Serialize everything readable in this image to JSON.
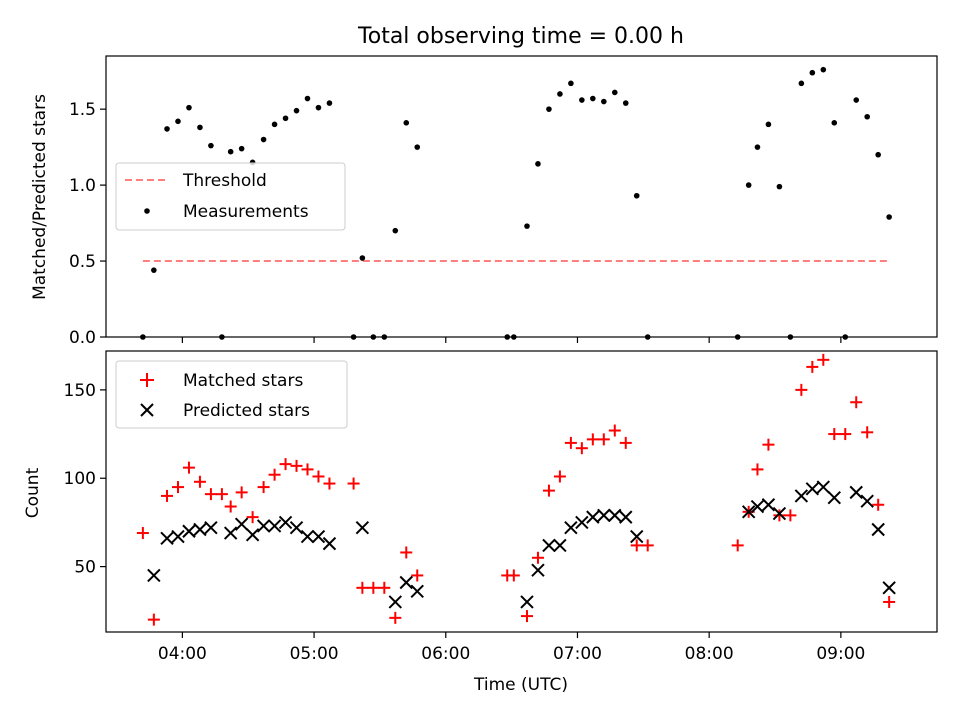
{
  "title": "Total observing time = 0.00 h",
  "chart_data": [
    {
      "type": "scatter",
      "ylabel": "Matched/Predicted stars",
      "xlim_hours": [
        3.42,
        9.73
      ],
      "ylim": [
        0,
        1.85
      ],
      "yticks": [
        0.0,
        0.5,
        1.0,
        1.5
      ],
      "yticklabels": [
        "0.0",
        "0.5",
        "1.0",
        "1.5"
      ],
      "xticks_hours": [
        4,
        5,
        6,
        7,
        8,
        9
      ],
      "legend_position": "center-left",
      "threshold": {
        "name": "Threshold",
        "y": 0.5,
        "x_range": [
          "03:42",
          "09:22"
        ],
        "color": "#ff7f7f",
        "style": "dashed"
      },
      "series": [
        {
          "name": "Measurements",
          "marker": "dot",
          "color": "#000000",
          "points": [
            [
              "03:42",
              0.0
            ],
            [
              "03:47",
              0.44
            ],
            [
              "03:53",
              1.37
            ],
            [
              "03:58",
              1.42
            ],
            [
              "04:03",
              1.51
            ],
            [
              "04:08",
              1.38
            ],
            [
              "04:13",
              1.26
            ],
            [
              "04:18",
              0.0
            ],
            [
              "04:22",
              1.22
            ],
            [
              "04:27",
              1.24
            ],
            [
              "04:32",
              1.15
            ],
            [
              "04:37",
              1.3
            ],
            [
              "04:42",
              1.4
            ],
            [
              "04:47",
              1.44
            ],
            [
              "04:52",
              1.49
            ],
            [
              "04:57",
              1.57
            ],
            [
              "05:02",
              1.51
            ],
            [
              "05:07",
              1.54
            ],
            [
              "05:18",
              0.0
            ],
            [
              "05:22",
              0.52
            ],
            [
              "05:27",
              0.0
            ],
            [
              "05:32",
              0.0
            ],
            [
              "05:37",
              0.7
            ],
            [
              "05:42",
              1.41
            ],
            [
              "05:47",
              1.25
            ],
            [
              "06:28",
              0.0
            ],
            [
              "06:31",
              0.0
            ],
            [
              "06:37",
              0.73
            ],
            [
              "06:42",
              1.14
            ],
            [
              "06:47",
              1.5
            ],
            [
              "06:52",
              1.6
            ],
            [
              "06:57",
              1.67
            ],
            [
              "07:02",
              1.56
            ],
            [
              "07:07",
              1.57
            ],
            [
              "07:12",
              1.55
            ],
            [
              "07:17",
              1.61
            ],
            [
              "07:22",
              1.54
            ],
            [
              "07:27",
              0.93
            ],
            [
              "07:32",
              0.0
            ],
            [
              "08:13",
              0.0
            ],
            [
              "08:18",
              1.0
            ],
            [
              "08:22",
              1.25
            ],
            [
              "08:27",
              1.4
            ],
            [
              "08:32",
              0.99
            ],
            [
              "08:37",
              0.0
            ],
            [
              "08:42",
              1.67
            ],
            [
              "08:47",
              1.74
            ],
            [
              "08:52",
              1.76
            ],
            [
              "08:57",
              1.41
            ],
            [
              "09:02",
              0.0
            ],
            [
              "09:07",
              1.56
            ],
            [
              "09:12",
              1.45
            ],
            [
              "09:17",
              1.2
            ],
            [
              "09:22",
              0.79
            ]
          ]
        }
      ]
    },
    {
      "type": "scatter",
      "xlabel": "Time (UTC)",
      "ylabel": "Count",
      "xlim_hours": [
        3.42,
        9.73
      ],
      "ylim": [
        13,
        172
      ],
      "yticks": [
        50,
        100,
        150
      ],
      "yticklabels": [
        "50",
        "100",
        "150"
      ],
      "xticks_hours": [
        4,
        5,
        6,
        7,
        8,
        9
      ],
      "xticklabels": [
        "04:00",
        "05:00",
        "06:00",
        "07:00",
        "08:00",
        "09:00"
      ],
      "legend_position": "top-left",
      "series": [
        {
          "name": "Matched stars",
          "marker": "plus",
          "color": "#ff0000",
          "points": [
            [
              "03:42",
              69
            ],
            [
              "03:47",
              20
            ],
            [
              "03:53",
              90
            ],
            [
              "03:58",
              95
            ],
            [
              "04:03",
              106
            ],
            [
              "04:08",
              98
            ],
            [
              "04:13",
              91
            ],
            [
              "04:18",
              91
            ],
            [
              "04:22",
              84
            ],
            [
              "04:27",
              92
            ],
            [
              "04:32",
              78
            ],
            [
              "04:37",
              95
            ],
            [
              "04:42",
              102
            ],
            [
              "04:47",
              108
            ],
            [
              "04:52",
              107
            ],
            [
              "04:57",
              105
            ],
            [
              "05:02",
              101
            ],
            [
              "05:07",
              97
            ],
            [
              "05:18",
              97
            ],
            [
              "05:22",
              38
            ],
            [
              "05:27",
              38
            ],
            [
              "05:32",
              38
            ],
            [
              "05:37",
              21
            ],
            [
              "05:42",
              58
            ],
            [
              "05:47",
              45
            ],
            [
              "06:28",
              45
            ],
            [
              "06:31",
              45
            ],
            [
              "06:37",
              22
            ],
            [
              "06:42",
              55
            ],
            [
              "06:47",
              93
            ],
            [
              "06:52",
              101
            ],
            [
              "06:57",
              120
            ],
            [
              "07:02",
              117
            ],
            [
              "07:07",
              122
            ],
            [
              "07:12",
              122
            ],
            [
              "07:17",
              127
            ],
            [
              "07:22",
              120
            ],
            [
              "07:27",
              62
            ],
            [
              "07:32",
              62
            ],
            [
              "08:13",
              62
            ],
            [
              "08:18",
              81
            ],
            [
              "08:22",
              105
            ],
            [
              "08:27",
              119
            ],
            [
              "08:32",
              79
            ],
            [
              "08:37",
              79
            ],
            [
              "08:42",
              150
            ],
            [
              "08:47",
              163
            ],
            [
              "08:52",
              167
            ],
            [
              "08:57",
              125
            ],
            [
              "09:02",
              125
            ],
            [
              "09:07",
              143
            ],
            [
              "09:12",
              126
            ],
            [
              "09:17",
              85
            ],
            [
              "09:22",
              30
            ]
          ]
        },
        {
          "name": "Predicted stars",
          "marker": "x",
          "color": "#000000",
          "points": [
            [
              "03:47",
              45
            ],
            [
              "03:53",
              66
            ],
            [
              "03:58",
              67
            ],
            [
              "04:03",
              70
            ],
            [
              "04:08",
              71
            ],
            [
              "04:13",
              72
            ],
            [
              "04:22",
              69
            ],
            [
              "04:27",
              74
            ],
            [
              "04:32",
              68
            ],
            [
              "04:37",
              73
            ],
            [
              "04:42",
              73
            ],
            [
              "04:47",
              75
            ],
            [
              "04:52",
              72
            ],
            [
              "04:57",
              67
            ],
            [
              "05:02",
              67
            ],
            [
              "05:07",
              63
            ],
            [
              "05:22",
              72
            ],
            [
              "05:37",
              30
            ],
            [
              "05:42",
              41
            ],
            [
              "05:47",
              36
            ],
            [
              "06:37",
              30
            ],
            [
              "06:42",
              48
            ],
            [
              "06:47",
              62
            ],
            [
              "06:52",
              62
            ],
            [
              "06:57",
              72
            ],
            [
              "07:02",
              75
            ],
            [
              "07:07",
              78
            ],
            [
              "07:12",
              79
            ],
            [
              "07:17",
              79
            ],
            [
              "07:22",
              78
            ],
            [
              "07:27",
              67
            ],
            [
              "08:18",
              81
            ],
            [
              "08:22",
              84
            ],
            [
              "08:27",
              85
            ],
            [
              "08:32",
              80
            ],
            [
              "08:42",
              90
            ],
            [
              "08:47",
              94
            ],
            [
              "08:52",
              95
            ],
            [
              "08:57",
              89
            ],
            [
              "09:07",
              92
            ],
            [
              "09:12",
              87
            ],
            [
              "09:17",
              71
            ],
            [
              "09:22",
              38
            ]
          ]
        }
      ]
    }
  ]
}
